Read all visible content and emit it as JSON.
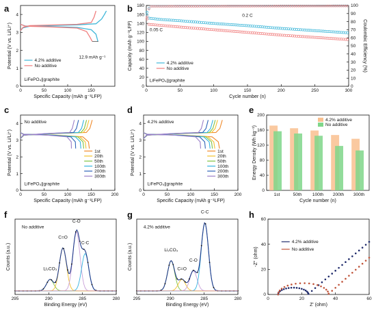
{
  "panels": {
    "a": {
      "label": "a"
    },
    "b": {
      "label": "b"
    },
    "c": {
      "label": "c"
    },
    "d": {
      "label": "d"
    },
    "e": {
      "label": "e"
    },
    "f": {
      "label": "f"
    },
    "g": {
      "label": "g"
    },
    "h": {
      "label": "h"
    }
  },
  "colors": {
    "additive": "#3fb7d9",
    "no_additive": "#f07f7f",
    "cycle_1st": "#f08a2a",
    "cycle_20th": "#f2c12e",
    "cycle_50th": "#7fc241",
    "cycle_100th": "#33b3e0",
    "cycle_200th": "#2e63b8",
    "cycle_300th": "#9b7fc8",
    "bar_additive": "#f9c08f",
    "bar_no_additive": "#7fd68a",
    "eis_additive": "#1f2a6b",
    "eis_no_additive": "#c0553b"
  },
  "chart_data": [
    {
      "panel": "a",
      "type": "line",
      "xlabel": "Specific Capacity (mAh g⁻¹LFP)",
      "ylabel": "Potential (V vs. Li/Li⁺)",
      "xlim": [
        0,
        200
      ],
      "ylim": [
        0,
        4.5
      ],
      "x_ticks": [
        0,
        50,
        100,
        150
      ],
      "y_ticks": [
        0,
        1,
        2,
        3,
        4
      ],
      "annotation": "12.9 mAh g⁻¹",
      "system_label": "LiFePO₄||graphite",
      "series": [
        {
          "name": "4.2% additive",
          "color_key": "additive",
          "charge": [
            [
              0,
              3.1
            ],
            [
              5,
              3.25
            ],
            [
              20,
              3.35
            ],
            [
              60,
              3.38
            ],
            [
              120,
              3.42
            ],
            [
              160,
              3.48
            ],
            [
              172,
              3.75
            ],
            [
              178,
              4.0
            ],
            [
              182,
              4.2
            ]
          ],
          "discharge": [
            [
              0,
              3.45
            ],
            [
              10,
              3.36
            ],
            [
              60,
              3.33
            ],
            [
              120,
              3.28
            ],
            [
              150,
              3.15
            ],
            [
              160,
              2.9
            ],
            [
              164,
              2.5
            ]
          ]
        },
        {
          "name": "No additive",
          "color_key": "no_additive",
          "charge": [
            [
              0,
              3.1
            ],
            [
              5,
              3.28
            ],
            [
              20,
              3.38
            ],
            [
              60,
              3.41
            ],
            [
              120,
              3.45
            ],
            [
              150,
              3.55
            ],
            [
              156,
              3.85
            ],
            [
              160,
              4.2
            ]
          ],
          "discharge": [
            [
              0,
              3.45
            ],
            [
              10,
              3.35
            ],
            [
              60,
              3.31
            ],
            [
              120,
              3.24
            ],
            [
              140,
              3.05
            ],
            [
              148,
              2.7
            ],
            [
              152,
              2.5
            ]
          ]
        }
      ]
    },
    {
      "panel": "b",
      "type": "scatter",
      "xlabel": "Cycle number (n)",
      "ylabel": "Capacity (mAh g⁻¹LFP)",
      "ylabel_right": "Coulombic Efficiency (%)",
      "xlim": [
        0,
        300
      ],
      "ylim": [
        0,
        180
      ],
      "ylim_right": [
        0,
        100
      ],
      "x_ticks": [
        0,
        50,
        100,
        150,
        200,
        250,
        300
      ],
      "y_ticks": [
        0,
        20,
        40,
        60,
        80,
        100,
        120,
        140,
        160,
        180
      ],
      "y_ticks_right": [
        0,
        10,
        20,
        30,
        40,
        50,
        60,
        70,
        80,
        90,
        100
      ],
      "annotation_low_rate": "0.05 C",
      "annotation_rate": "0.2 C",
      "system_label": "LiFePO₄||graphite",
      "series": [
        {
          "name": "4.2% additive",
          "color_key": "additive",
          "capacity": [
            [
              1,
              165
            ],
            [
              3,
              152
            ],
            [
              20,
              149
            ],
            [
              50,
              146
            ],
            [
              100,
              140
            ],
            [
              150,
              135
            ],
            [
              200,
              129
            ],
            [
              250,
              124
            ],
            [
              300,
              119
            ]
          ],
          "coulombic_efficiency": [
            [
              1,
              88
            ],
            [
              5,
              99.2
            ],
            [
              300,
              99.6
            ]
          ]
        },
        {
          "name": "No additive",
          "color_key": "no_additive",
          "capacity": [
            [
              1,
              150
            ],
            [
              3,
              138
            ],
            [
              20,
              136
            ],
            [
              50,
              132
            ],
            [
              100,
              126
            ],
            [
              150,
              120
            ],
            [
              200,
              114
            ],
            [
              250,
              109
            ],
            [
              300,
              104
            ]
          ],
          "coulombic_efficiency": [
            [
              1,
              86
            ],
            [
              5,
              99.0
            ],
            [
              300,
              99.4
            ]
          ]
        }
      ]
    },
    {
      "panel": "c",
      "type": "line",
      "title": "No additive",
      "xlabel": "Specific Capacity (mAh g⁻¹LFP)",
      "ylabel": "Potential (V vs. Li/Li⁺)",
      "xlim": [
        0,
        200
      ],
      "ylim": [
        0,
        4.5
      ],
      "x_ticks": [
        0,
        50,
        100,
        150,
        200
      ],
      "y_ticks": [
        0,
        1,
        2,
        3,
        4
      ],
      "system_label": "LiFePO₄||graphite",
      "series": [
        {
          "name": "1st",
          "color_key": "cycle_1st",
          "capacity": 150
        },
        {
          "name": "20th",
          "color_key": "cycle_20th",
          "capacity": 143
        },
        {
          "name": "50th",
          "color_key": "cycle_50th",
          "capacity": 138
        },
        {
          "name": "100th",
          "color_key": "cycle_100th",
          "capacity": 132
        },
        {
          "name": "200th",
          "color_key": "cycle_200th",
          "capacity": 121
        },
        {
          "name": "300th",
          "color_key": "cycle_300th",
          "capacity": 112
        }
      ]
    },
    {
      "panel": "d",
      "type": "line",
      "title": "4.2% additive",
      "xlabel": "Specific Capacity (mAh g⁻¹LFP)",
      "ylabel": "Potential (V vs. Li/Li⁺)",
      "xlim": [
        0,
        200
      ],
      "ylim": [
        0,
        4.5
      ],
      "x_ticks": [
        0,
        50,
        100,
        150,
        200
      ],
      "y_ticks": [
        0,
        1,
        2,
        3,
        4
      ],
      "system_label": "LiFePO₄||graphite",
      "series": [
        {
          "name": "1st",
          "color_key": "cycle_1st",
          "capacity": 165
        },
        {
          "name": "20th",
          "color_key": "cycle_20th",
          "capacity": 155
        },
        {
          "name": "50th",
          "color_key": "cycle_50th",
          "capacity": 150
        },
        {
          "name": "100th",
          "color_key": "cycle_100th",
          "capacity": 145
        },
        {
          "name": "200th",
          "color_key": "cycle_200th",
          "capacity": 135
        },
        {
          "name": "300th",
          "color_key": "cycle_300th",
          "capacity": 125
        }
      ]
    },
    {
      "panel": "e",
      "type": "bar",
      "xlabel": "Cycle number (n)",
      "ylabel": "Energy Density (Wh kg⁻¹)",
      "categories": [
        "1st",
        "50th",
        "100th",
        "200th",
        "300th"
      ],
      "ylim": [
        0,
        200
      ],
      "y_ticks": [
        0,
        40,
        80,
        120,
        160,
        200
      ],
      "series": [
        {
          "name": "4.2% additive",
          "color_key": "bar_additive",
          "values": [
            172,
            165,
            159,
            147,
            137
          ]
        },
        {
          "name": "No additive",
          "color_key": "bar_no_additive",
          "values": [
            157,
            151,
            145,
            118,
            106
          ]
        }
      ]
    },
    {
      "panel": "f",
      "type": "line",
      "title": "No additive",
      "xlabel": "Binding Energy (eV)",
      "ylabel": "Counts (a.u.)",
      "xlim": [
        295,
        280
      ],
      "x_ticks": [
        295,
        290,
        285,
        280
      ],
      "peaks": [
        {
          "name": "Li₂CO₃",
          "center": 289.8,
          "height": 0.16
        },
        {
          "name": "C=O",
          "center": 287.9,
          "height": 0.6
        },
        {
          "name": "C-O",
          "center": 285.9,
          "height": 0.82
        },
        {
          "name": "C-C",
          "center": 284.6,
          "height": 0.52
        }
      ]
    },
    {
      "panel": "g",
      "type": "line",
      "title": "4.2% additive",
      "xlabel": "Binding Energy (eV)",
      "ylabel": "Counts (a.u.)",
      "xlim": [
        295,
        280
      ],
      "x_ticks": [
        295,
        290,
        285,
        280
      ],
      "peaks": [
        {
          "name": "Li₂CO₃",
          "center": 289.9,
          "height": 0.42
        },
        {
          "name": "C=O",
          "center": 288.3,
          "height": 0.16
        },
        {
          "name": "C-O",
          "center": 286.6,
          "height": 0.28
        },
        {
          "name": "C-C",
          "center": 284.9,
          "height": 0.95
        }
      ]
    },
    {
      "panel": "h",
      "type": "scatter",
      "xlabel": "Z' (ohm)",
      "ylabel": "-Z'' (ohm)",
      "xlim": [
        0,
        60
      ],
      "ylim": [
        0,
        60
      ],
      "x_ticks": [
        0,
        20,
        40,
        60
      ],
      "y_ticks": [
        0,
        20,
        40,
        60
      ],
      "series": [
        {
          "name": "4.2% additive",
          "color_key": "eis_additive",
          "semicircle": [
            6,
            24
          ],
          "tail_slope": 1.15
        },
        {
          "name": "No additive",
          "color_key": "eis_no_additive",
          "semicircle": [
            6,
            36
          ],
          "tail_slope": 1.2
        }
      ]
    }
  ]
}
